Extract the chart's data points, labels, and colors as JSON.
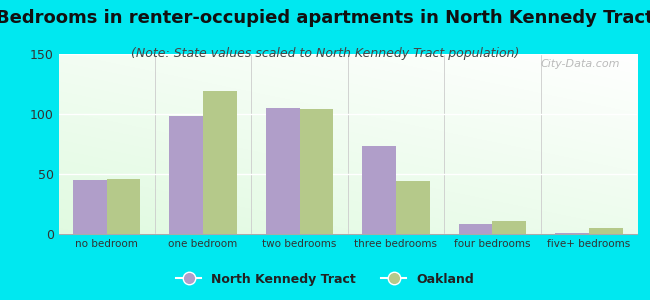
{
  "title": "Bedrooms in renter-occupied apartments in North Kennedy Tract",
  "subtitle": "(Note: State values scaled to North Kennedy Tract population)",
  "categories": [
    "no bedroom",
    "one bedroom",
    "two bedrooms",
    "three bedrooms",
    "four bedrooms",
    "five+ bedrooms"
  ],
  "nkt_values": [
    45,
    98,
    105,
    73,
    8,
    1
  ],
  "oakland_values": [
    46,
    119,
    104,
    44,
    11,
    5
  ],
  "nkt_color": "#b09ec9",
  "oakland_color": "#b5c98a",
  "background_outer": "#00e8f0",
  "ylim": [
    0,
    150
  ],
  "yticks": [
    0,
    50,
    100,
    150
  ],
  "bar_width": 0.35,
  "title_fontsize": 13,
  "subtitle_fontsize": 9,
  "legend_label_nkt": "North Kennedy Tract",
  "legend_label_oak": "Oakland",
  "watermark": "City-Data.com"
}
